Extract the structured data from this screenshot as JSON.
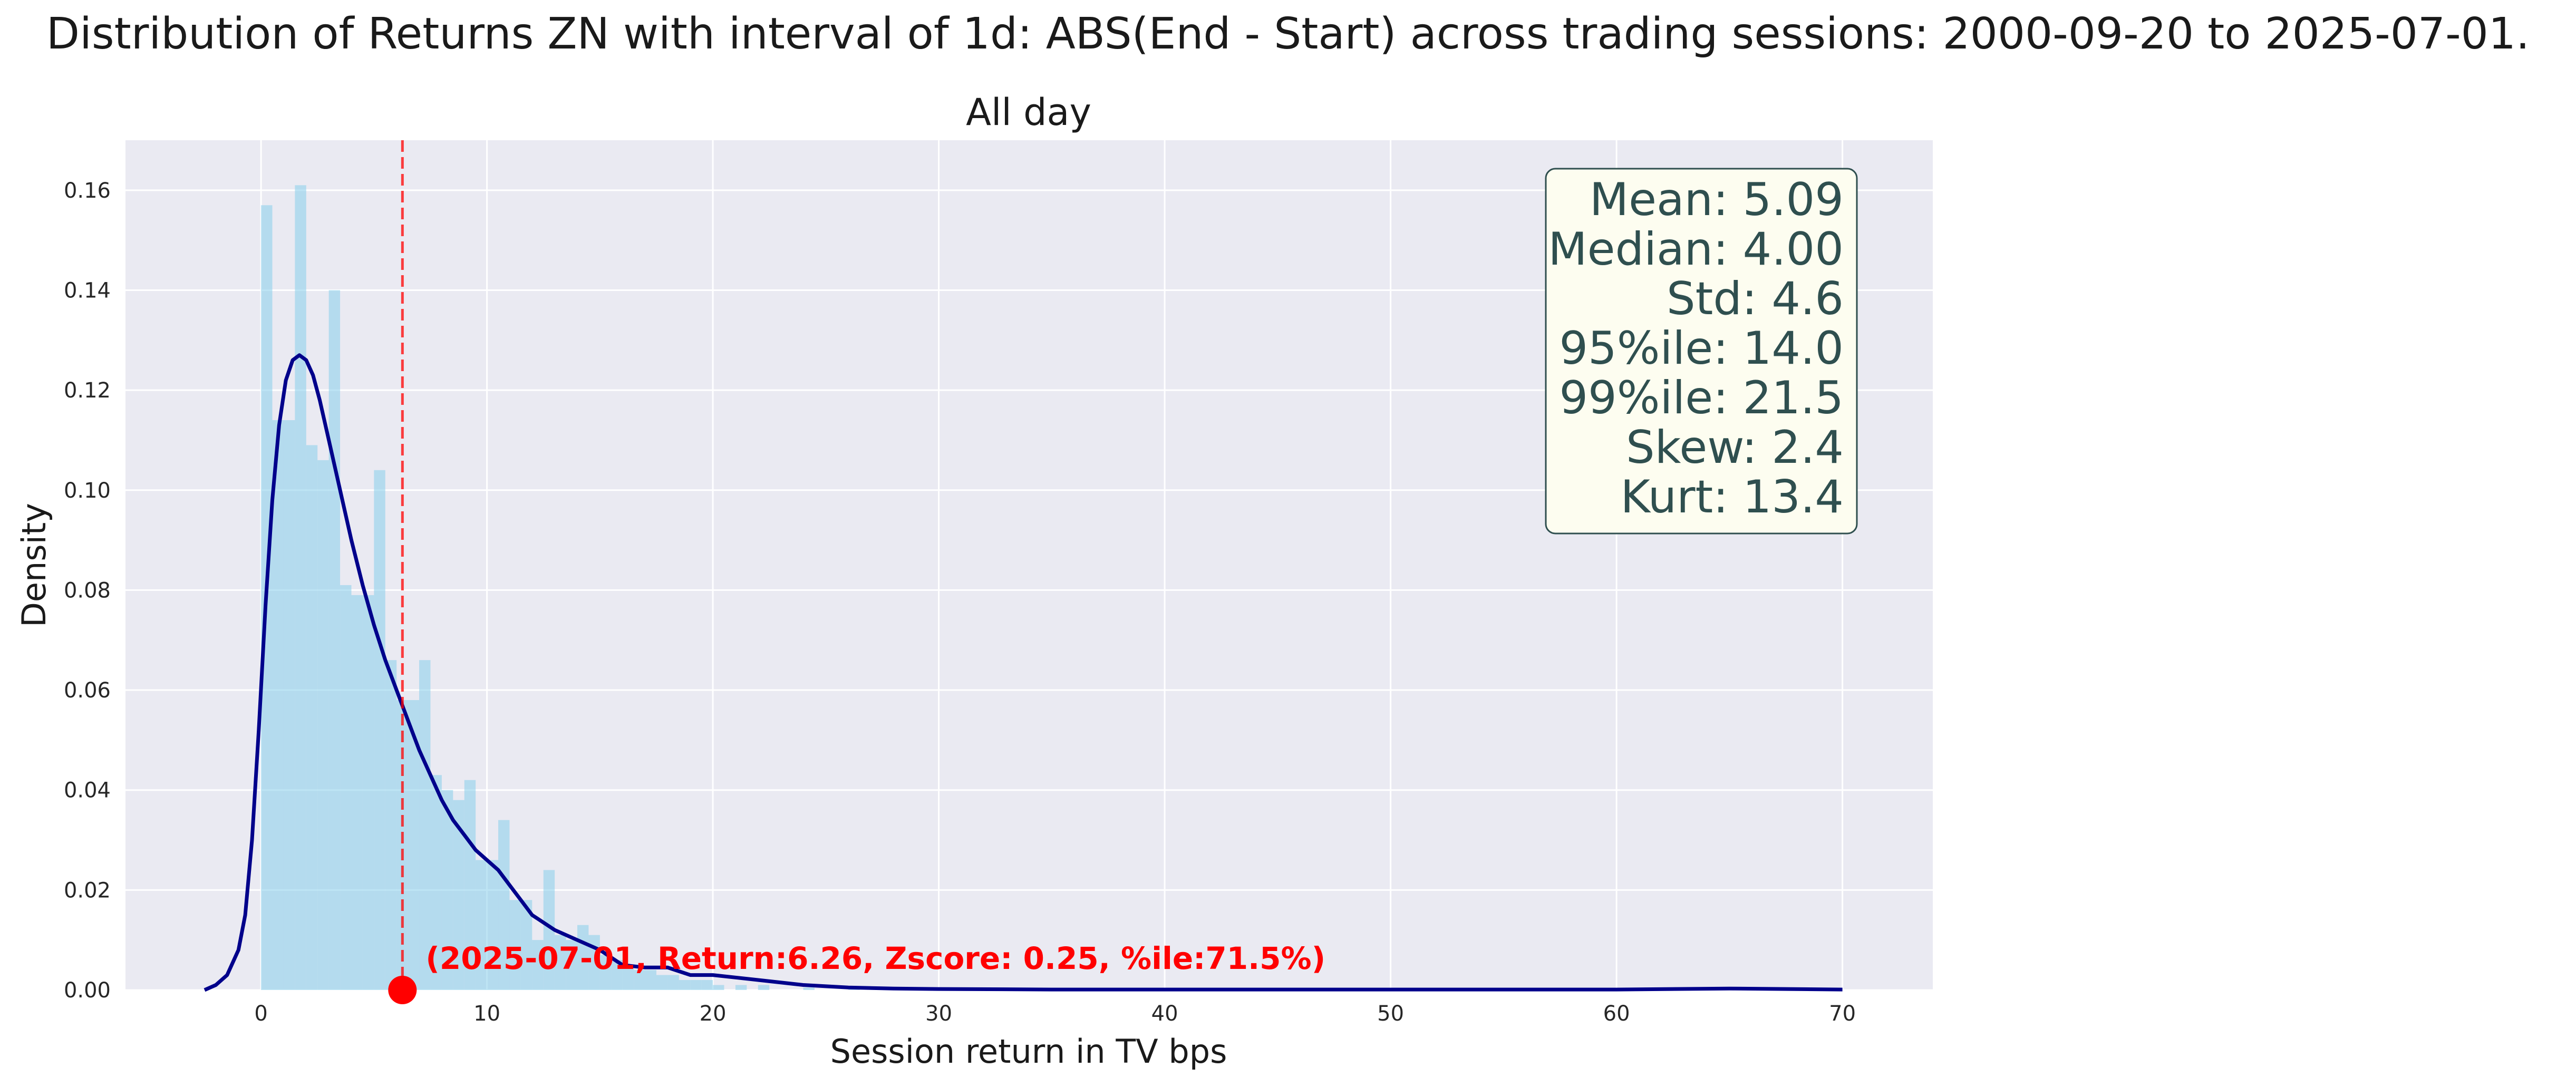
{
  "chart_data": {
    "type": "histogram",
    "title": "Distribution of Returns ZN with interval of 1d: ABS(End - Start) across trading sessions: 2000-09-20 to 2025-07-01.",
    "subtitle": "All day",
    "xlabel": "Session return in TV bps",
    "ylabel": "Density",
    "xlim": [
      -6,
      74
    ],
    "ylim": [
      0,
      0.17
    ],
    "xticks": [
      0,
      10,
      20,
      30,
      40,
      50,
      60,
      70
    ],
    "yticks": [
      0.0,
      0.02,
      0.04,
      0.06,
      0.08,
      0.1,
      0.12,
      0.14,
      0.16
    ],
    "grid": true,
    "histogram": {
      "color": "#87ceeb",
      "bin_width": 0.5,
      "bins": [
        {
          "x0": 0.0,
          "density": 0.157
        },
        {
          "x0": 0.5,
          "density": 0.114
        },
        {
          "x0": 1.0,
          "density": 0.114
        },
        {
          "x0": 1.5,
          "density": 0.161
        },
        {
          "x0": 2.0,
          "density": 0.109
        },
        {
          "x0": 2.5,
          "density": 0.106
        },
        {
          "x0": 3.0,
          "density": 0.14
        },
        {
          "x0": 3.5,
          "density": 0.081
        },
        {
          "x0": 4.0,
          "density": 0.079
        },
        {
          "x0": 4.5,
          "density": 0.079
        },
        {
          "x0": 5.0,
          "density": 0.104
        },
        {
          "x0": 5.5,
          "density": 0.066
        },
        {
          "x0": 6.0,
          "density": 0.058
        },
        {
          "x0": 6.5,
          "density": 0.058
        },
        {
          "x0": 7.0,
          "density": 0.066
        },
        {
          "x0": 7.5,
          "density": 0.043
        },
        {
          "x0": 8.0,
          "density": 0.04
        },
        {
          "x0": 8.5,
          "density": 0.038
        },
        {
          "x0": 9.0,
          "density": 0.042
        },
        {
          "x0": 9.5,
          "density": 0.026
        },
        {
          "x0": 10.0,
          "density": 0.026
        },
        {
          "x0": 10.5,
          "density": 0.034
        },
        {
          "x0": 11.0,
          "density": 0.018
        },
        {
          "x0": 11.5,
          "density": 0.018
        },
        {
          "x0": 12.0,
          "density": 0.01
        },
        {
          "x0": 12.5,
          "density": 0.024
        },
        {
          "x0": 13.0,
          "density": 0.011
        },
        {
          "x0": 13.5,
          "density": 0.01
        },
        {
          "x0": 14.0,
          "density": 0.013
        },
        {
          "x0": 14.5,
          "density": 0.011
        },
        {
          "x0": 15.0,
          "density": 0.007
        },
        {
          "x0": 15.5,
          "density": 0.006
        },
        {
          "x0": 16.0,
          "density": 0.005
        },
        {
          "x0": 16.5,
          "density": 0.004
        },
        {
          "x0": 17.0,
          "density": 0.004
        },
        {
          "x0": 17.5,
          "density": 0.003
        },
        {
          "x0": 18.0,
          "density": 0.003
        },
        {
          "x0": 18.5,
          "density": 0.002
        },
        {
          "x0": 19.0,
          "density": 0.002
        },
        {
          "x0": 19.5,
          "density": 0.002
        },
        {
          "x0": 20.0,
          "density": 0.001
        },
        {
          "x0": 21.0,
          "density": 0.001
        },
        {
          "x0": 22.0,
          "density": 0.001
        },
        {
          "x0": 24.0,
          "density": 0.0005
        },
        {
          "x0": 26.0,
          "density": 0.0003
        }
      ]
    },
    "kde": {
      "color": "#00008b",
      "x": [
        -2.5,
        -2.0,
        -1.5,
        -1.0,
        -0.7,
        -0.4,
        -0.1,
        0.2,
        0.5,
        0.8,
        1.1,
        1.4,
        1.7,
        2.0,
        2.3,
        2.6,
        3.0,
        3.5,
        4.0,
        4.5,
        5.0,
        5.5,
        6.0,
        6.5,
        7.0,
        7.5,
        8.0,
        8.5,
        9.0,
        9.5,
        10.0,
        10.5,
        11.0,
        11.5,
        12.0,
        13.0,
        14.0,
        15.0,
        16.0,
        17.0,
        18.0,
        19.0,
        20.0,
        22.0,
        24.0,
        26.0,
        28.0,
        30.0,
        35.0,
        40.0,
        50.0,
        60.0,
        65.0,
        70.0
      ],
      "y": [
        0.0,
        0.001,
        0.003,
        0.008,
        0.015,
        0.03,
        0.052,
        0.077,
        0.098,
        0.113,
        0.122,
        0.126,
        0.127,
        0.126,
        0.123,
        0.118,
        0.11,
        0.1,
        0.09,
        0.081,
        0.073,
        0.066,
        0.06,
        0.054,
        0.048,
        0.043,
        0.038,
        0.034,
        0.031,
        0.028,
        0.026,
        0.024,
        0.021,
        0.018,
        0.015,
        0.012,
        0.01,
        0.008,
        0.005,
        0.0045,
        0.0045,
        0.003,
        0.003,
        0.002,
        0.001,
        0.0005,
        0.0003,
        0.0002,
        0.0001,
        0.0001,
        0.0001,
        0.0001,
        0.0003,
        0.0001
      ]
    },
    "marker": {
      "x": 6.26,
      "y": 0.0,
      "color": "#ff0000",
      "label": "(2025-07-01, Return:6.26, Zscore: 0.25, %ile:71.5%)"
    },
    "stats_box": {
      "lines": [
        "Mean: 5.09",
        "Median: 4.00",
        "Std: 4.6",
        "95%ile: 14.0",
        "99%ile: 21.5",
        "Skew: 2.4",
        "Kurt: 13.4"
      ],
      "facecolor": "#fdfdf0",
      "edgecolor": "#2f4f4f"
    },
    "axes_facecolor": "#eaeaf2",
    "grid_color": "#ffffff"
  }
}
